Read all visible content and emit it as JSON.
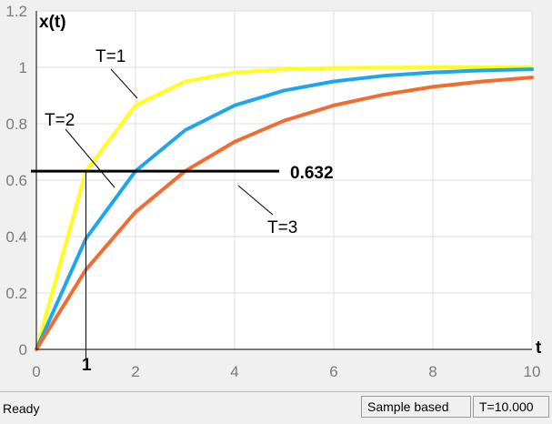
{
  "chart_data": {
    "type": "line",
    "ylabel": "x(t)",
    "xlabel": "t",
    "xlim": [
      0,
      10
    ],
    "ylim": [
      0,
      1.2
    ],
    "x_ticks": [
      "0",
      "2",
      "4",
      "6",
      "8",
      "10"
    ],
    "y_ticks": [
      "0",
      "0.2",
      "0.4",
      "0.6",
      "0.8",
      "1",
      "1.2"
    ],
    "grid": true,
    "series": [
      {
        "name": "T=1",
        "color": "#ffff1a",
        "x": [
          0,
          1,
          2,
          3,
          4,
          5,
          6,
          7,
          8,
          9,
          10
        ],
        "y": [
          0,
          0.632,
          0.865,
          0.95,
          0.982,
          0.993,
          0.998,
          0.999,
          1.0,
          1.0,
          1.0
        ]
      },
      {
        "name": "T=2",
        "color": "#1fa5ef",
        "x": [
          0,
          1,
          2,
          3,
          4,
          5,
          6,
          7,
          8,
          9,
          10
        ],
        "y": [
          0,
          0.393,
          0.632,
          0.777,
          0.865,
          0.918,
          0.95,
          0.97,
          0.982,
          0.989,
          0.993
        ]
      },
      {
        "name": "T=3",
        "color": "#f26b30",
        "x": [
          0,
          1,
          2,
          3,
          4,
          5,
          6,
          7,
          8,
          9,
          10
        ],
        "y": [
          0,
          0.283,
          0.487,
          0.632,
          0.736,
          0.811,
          0.865,
          0.903,
          0.931,
          0.95,
          0.964
        ]
      }
    ],
    "annotations": {
      "level_label": "0.632",
      "level_value": 0.632,
      "level_x_range": [
        0,
        4.9
      ],
      "marker_label": "1",
      "marker_x": 1
    },
    "colors": {
      "background": "#ffffff",
      "grid": "#dedede",
      "axis": "#000000"
    }
  },
  "status": {
    "text": "Ready",
    "mode": "Sample based",
    "time": "T=10.000"
  }
}
